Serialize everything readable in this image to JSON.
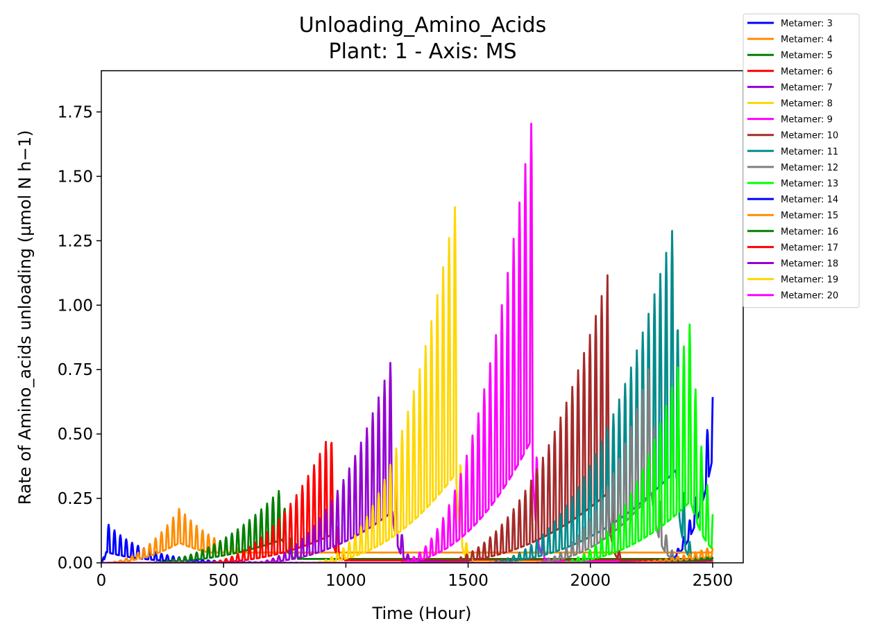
{
  "chart_data": {
    "type": "line",
    "title": "Unloading_Amino_Acids",
    "subtitle": "Plant: 1 - Axis: MS",
    "xlabel": "Time (Hour)",
    "ylabel": "Rate of Amino_acids unloading (µmol N h−1)",
    "xlim": [
      0,
      2625
    ],
    "ylim": [
      0,
      1.91
    ],
    "xticks": [
      0,
      500,
      1000,
      1500,
      2000,
      2500
    ],
    "yticks": [
      0.0,
      0.25,
      0.5,
      0.75,
      1.0,
      1.25,
      1.5,
      1.75
    ],
    "xtick_labels": [
      "0",
      "500",
      "1000",
      "1500",
      "2000",
      "2500"
    ],
    "ytick_labels": [
      "0.00",
      "0.25",
      "0.50",
      "0.75",
      "1.00",
      "1.25",
      "1.50",
      "1.75"
    ],
    "legend_position": "outside-top-right",
    "series": [
      {
        "name": "Metamer: 3",
        "color": "#0000ff",
        "start": 0,
        "end": 2500,
        "onset": 0,
        "rise": 1,
        "peak_time": 20,
        "peak_max": 0.14,
        "base": 0.07,
        "fall": 150,
        "tail": 0.0,
        "late_rise": [
          2250,
          2500,
          0.68
        ]
      },
      {
        "name": "Metamer: 4",
        "color": "#ff8c00",
        "start": 0,
        "end": 2500,
        "onset": 0,
        "rise": 260,
        "peak_time": 320,
        "peak_max": 0.17,
        "base": 0.13,
        "fall": 180,
        "tail": 0.04
      },
      {
        "name": "Metamer: 5",
        "color": "#008000",
        "start": 0,
        "end": 2500,
        "onset": 150,
        "rise": 180,
        "peak_time": 740,
        "peak_max": 0.25,
        "base": 0.15,
        "fall": 30,
        "tail": 0.015
      },
      {
        "name": "Metamer: 6",
        "color": "#ff0000",
        "start": 0,
        "end": 2500,
        "onset": 400,
        "rise": 200,
        "peak_time": 940,
        "peak_max": 0.48,
        "base": 0.18,
        "fall": 20,
        "tail": 0.01
      },
      {
        "name": "Metamer: 7",
        "color": "#9400d3",
        "start": 0,
        "end": 2500,
        "onset": 600,
        "rise": 250,
        "peak_time": 1190,
        "peak_max": 0.72,
        "base": 0.33,
        "fall": 20,
        "tail": 0.005
      },
      {
        "name": "Metamer: 8",
        "color": "#ffd700",
        "start": 0,
        "end": 2500,
        "onset": 850,
        "rise": 300,
        "peak_time": 1450,
        "peak_max": 1.26,
        "base": 0.58,
        "fall": 15,
        "tail": 0.005
      },
      {
        "name": "Metamer: 9",
        "color": "#ff00ff",
        "start": 0,
        "end": 2500,
        "onset": 1200,
        "rise": 300,
        "peak_time": 1760,
        "peak_max": 1.5,
        "base": 0.8,
        "fall": 15,
        "tail": 0.005
      },
      {
        "name": "Metamer: 10",
        "color": "#a52a2a",
        "start": 0,
        "end": 2500,
        "onset": 1350,
        "rise": 350,
        "peak_time": 2070,
        "peak_max": 1.01,
        "base": 0.45,
        "fall": 15,
        "tail": 0.005
      },
      {
        "name": "Metamer: 11",
        "color": "#008b8b",
        "start": 0,
        "end": 2500,
        "onset": 1550,
        "rise": 400,
        "peak_time": 2350,
        "peak_max": 1.19,
        "base": 0.6,
        "fall": 20,
        "tail": 0.01
      },
      {
        "name": "Metamer: 12",
        "color": "#808080",
        "start": 0,
        "end": 2500,
        "onset": 1750,
        "rise": 400,
        "peak_time": 2250,
        "peak_max": 0.65,
        "base": 0.45,
        "fall": 30,
        "tail": 0.005
      },
      {
        "name": "Metamer: 13",
        "color": "#00ff00",
        "start": 0,
        "end": 2500,
        "onset": 1850,
        "rise": 420,
        "peak_time": 2410,
        "peak_max": 0.84,
        "base": 0.4,
        "fall": 60,
        "tail": 0.02
      },
      {
        "name": "Metamer: 14",
        "color": "#0000ff",
        "start": 0,
        "end": 2500,
        "onset": 2000,
        "rise": 1,
        "peak_time": 2500,
        "peak_max": 0.02,
        "base": 0.01,
        "fall": 1,
        "tail": 0.0
      },
      {
        "name": "Metamer: 15",
        "color": "#ff8c00",
        "start": 0,
        "end": 2500,
        "onset": 2100,
        "rise": 1,
        "peak_time": 2500,
        "peak_max": 0.05,
        "base": 0.04,
        "fall": 1,
        "tail": 0.0
      },
      {
        "name": "Metamer: 16",
        "color": "#008000",
        "start": 0,
        "end": 2500,
        "onset": 2200,
        "rise": 1,
        "peak_time": 2500,
        "peak_max": 0.02,
        "base": 0.015,
        "fall": 1,
        "tail": 0.0
      },
      {
        "name": "Metamer: 17",
        "color": "#ff0000",
        "start": 0,
        "end": 2500,
        "onset": 2300,
        "rise": 1,
        "peak_time": 2500,
        "peak_max": 0.01,
        "base": 0.005,
        "fall": 1,
        "tail": 0.0
      },
      {
        "name": "Metamer: 18",
        "color": "#9400d3",
        "start": 0,
        "end": 2500,
        "onset": 2400,
        "rise": 1,
        "peak_time": 2500,
        "peak_max": 0.005,
        "base": 0.003,
        "fall": 1,
        "tail": 0.0
      },
      {
        "name": "Metamer: 19",
        "color": "#ffd700",
        "start": 0,
        "end": 2500,
        "onset": 2450,
        "rise": 1,
        "peak_time": 2500,
        "peak_max": 0.003,
        "base": 0.002,
        "fall": 1,
        "tail": 0.0
      },
      {
        "name": "Metamer: 20",
        "color": "#ff00ff",
        "start": 0,
        "end": 2500,
        "onset": 2480,
        "rise": 1,
        "peak_time": 2500,
        "peak_max": 0.002,
        "base": 0.001,
        "fall": 1,
        "tail": 0.0
      }
    ]
  }
}
